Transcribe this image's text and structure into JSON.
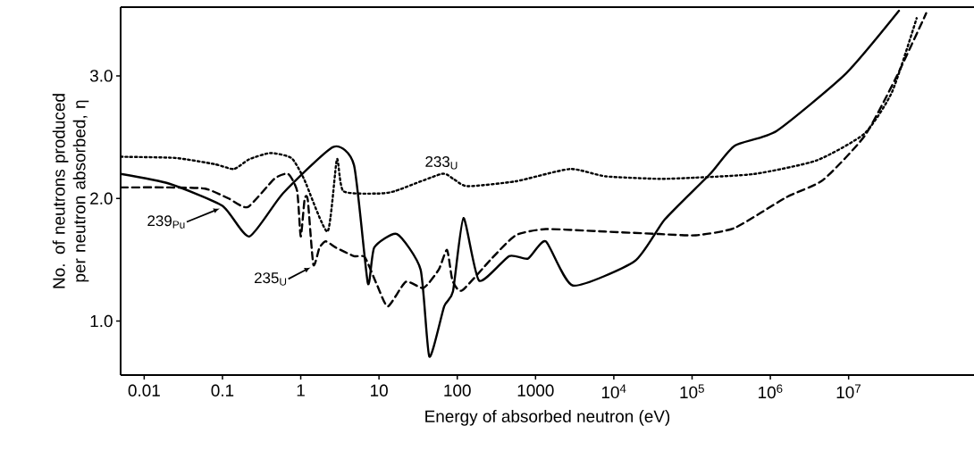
{
  "chart_data": {
    "type": "line",
    "xlabel": "Energy of absorbed neutron (eV)",
    "ylabel": "No. of neutrons  produced per neutron absorbed, η",
    "log": "x",
    "xlim": [
      0.005,
      400000000
    ],
    "ylim": [
      0.56,
      3.56
    ],
    "xticks": [
      0.01,
      0.1,
      1,
      10,
      100,
      1000,
      {
        "value": 10000,
        "label": "10$^{4}$"
      },
      {
        "value": 100000,
        "label": "10$^{5}$"
      },
      {
        "value": 1000000,
        "label": "10$^{6}$"
      },
      {
        "value": 10000000,
        "label": "10$^{7}$"
      }
    ],
    "yticks": [
      {
        "value": 1,
        "label": "1.0"
      },
      {
        "value": 2,
        "label": "2.0"
      },
      {
        "value": 3,
        "label": "3.0"
      }
    ],
    "grid": false,
    "marker": "none",
    "series": [
      {
        "color": "#000000",
        "line_style": "solid",
        "x": [
          0.005,
          0.021,
          0.1,
          0.22,
          0.59,
          2.6,
          4.8,
          7.2,
          8.7,
          17,
          34,
          44,
          68,
          88,
          120,
          190,
          460,
          800,
          1350,
          3000,
          18600,
          45000,
          170000,
          350000,
          1200000,
          9300000,
          44000000
        ],
        "values": [
          2.2,
          2.12,
          1.94,
          1.69,
          2.04,
          2.42,
          2.27,
          1.31,
          1.6,
          1.71,
          1.42,
          0.71,
          1.12,
          1.24,
          1.84,
          1.33,
          1.53,
          1.51,
          1.65,
          1.29,
          1.49,
          1.83,
          2.2,
          2.43,
          2.55,
          3.02,
          3.53
        ]
      },
      {
        "color": "#000000",
        "line_style": "dashed",
        "x": [
          0.005,
          0.021,
          0.06,
          0.12,
          0.21,
          0.46,
          0.69,
          0.9,
          1.0,
          1.12,
          1.23,
          1.45,
          1.74,
          2.1,
          2.8,
          4.8,
          6.6,
          9.5,
          13,
          22,
          37,
          58,
          74,
          87,
          115,
          275,
          560,
          1350,
          7600,
          38000,
          112000,
          350000,
          1600000,
          4700000,
          16000000,
          40000000,
          98000000
        ],
        "values": [
          2.09,
          2.09,
          2.08,
          2.0,
          1.93,
          2.16,
          2.2,
          2.06,
          1.69,
          1.99,
          1.99,
          1.46,
          1.6,
          1.65,
          1.6,
          1.53,
          1.52,
          1.29,
          1.12,
          1.32,
          1.27,
          1.42,
          1.58,
          1.33,
          1.25,
          1.51,
          1.7,
          1.75,
          1.73,
          1.71,
          1.7,
          1.76,
          2.01,
          2.15,
          2.51,
          2.98,
          3.51
        ]
      },
      {
        "color": "#000000",
        "line_style": "dotted",
        "x": [
          0.005,
          0.025,
          0.079,
          0.14,
          0.22,
          0.41,
          0.76,
          1.1,
          2.2,
          2.9,
          3.5,
          9.5,
          16,
          63,
          89,
          135,
          560,
          2750,
          7900,
          38000,
          112000,
          630000,
          3900000,
          16000000,
          36000000,
          74000000
        ],
        "values": [
          2.34,
          2.33,
          2.28,
          2.24,
          2.32,
          2.37,
          2.33,
          2.16,
          1.73,
          2.32,
          2.06,
          2.04,
          2.06,
          2.2,
          2.16,
          2.1,
          2.14,
          2.24,
          2.18,
          2.16,
          2.17,
          2.2,
          2.31,
          2.53,
          2.87,
          3.47
        ]
      }
    ],
    "annotations": [
      "239$_{Pu}$",
      "235$_{U}$",
      "233$_{U}$"
    ]
  }
}
